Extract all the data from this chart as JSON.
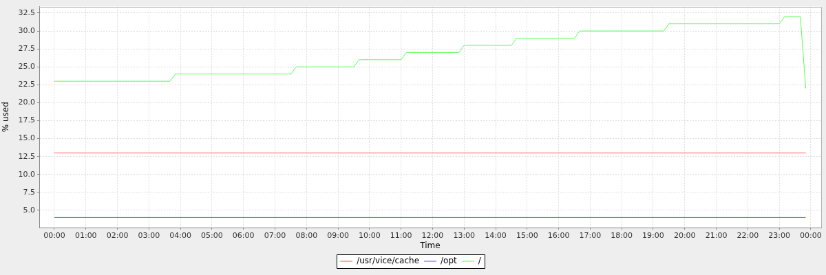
{
  "chart_data": {
    "type": "line",
    "xlabel": "Time",
    "ylabel": "% used",
    "xlim": [
      -0.48,
      24.33
    ],
    "xticks": [
      {
        "value": 0,
        "label": "00:00"
      },
      {
        "value": 1,
        "label": "01:00"
      },
      {
        "value": 2,
        "label": "02:00"
      },
      {
        "value": 3,
        "label": "03:00"
      },
      {
        "value": 4,
        "label": "04:00"
      },
      {
        "value": 5,
        "label": "05:00"
      },
      {
        "value": 6,
        "label": "06:00"
      },
      {
        "value": 7,
        "label": "07:00"
      },
      {
        "value": 8,
        "label": "08:00"
      },
      {
        "value": 9,
        "label": "09:00"
      },
      {
        "value": 10,
        "label": "10:00"
      },
      {
        "value": 11,
        "label": "11:00"
      },
      {
        "value": 12,
        "label": "12:00"
      },
      {
        "value": 13,
        "label": "13:00"
      },
      {
        "value": 14,
        "label": "14:00"
      },
      {
        "value": 15,
        "label": "15:00"
      },
      {
        "value": 16,
        "label": "16:00"
      },
      {
        "value": 17,
        "label": "17:00"
      },
      {
        "value": 18,
        "label": "18:00"
      },
      {
        "value": 19,
        "label": "19:00"
      },
      {
        "value": 20,
        "label": "20:00"
      },
      {
        "value": 21,
        "label": "21:00"
      },
      {
        "value": 22,
        "label": "22:00"
      },
      {
        "value": 23,
        "label": "23:00"
      },
      {
        "value": 24,
        "label": "00:00"
      }
    ],
    "ylim": [
      2.6,
      33.4
    ],
    "yticks": [
      {
        "value": 5,
        "label": "5.0"
      },
      7.5,
      {
        "value": 10,
        "label": "10.0"
      },
      12.5,
      {
        "value": 15,
        "label": "15.0"
      },
      17.5,
      {
        "value": 20,
        "label": "20.0"
      },
      22.5,
      {
        "value": 25,
        "label": "25.0"
      },
      27.5,
      {
        "value": 30,
        "label": "30.0"
      },
      32.5
    ],
    "grid": true,
    "legend": "bottom",
    "marker": "none",
    "series": [
      {
        "name": "/usr/vice/cache",
        "color": "#ff5555",
        "x": [
          0,
          23.84
        ],
        "values": [
          13,
          13
        ]
      },
      {
        "name": "/opt",
        "color": "#5555ff",
        "x": [
          0,
          23.84
        ],
        "values": [
          4,
          4
        ]
      },
      {
        "name": "/",
        "color": "#55ff55",
        "x": [
          0,
          3.67,
          3.84,
          7.51,
          7.67,
          9.5,
          9.67,
          11.0,
          11.17,
          12.84,
          13.0,
          14.5,
          14.67,
          16.5,
          16.67,
          19.34,
          19.5,
          23.0,
          23.17,
          23.67,
          23.84
        ],
        "values": [
          23,
          23,
          24,
          24,
          25,
          25,
          26,
          26,
          27,
          27,
          28,
          28,
          29,
          29,
          30,
          30,
          31,
          31,
          32,
          32,
          22
        ]
      }
    ]
  }
}
